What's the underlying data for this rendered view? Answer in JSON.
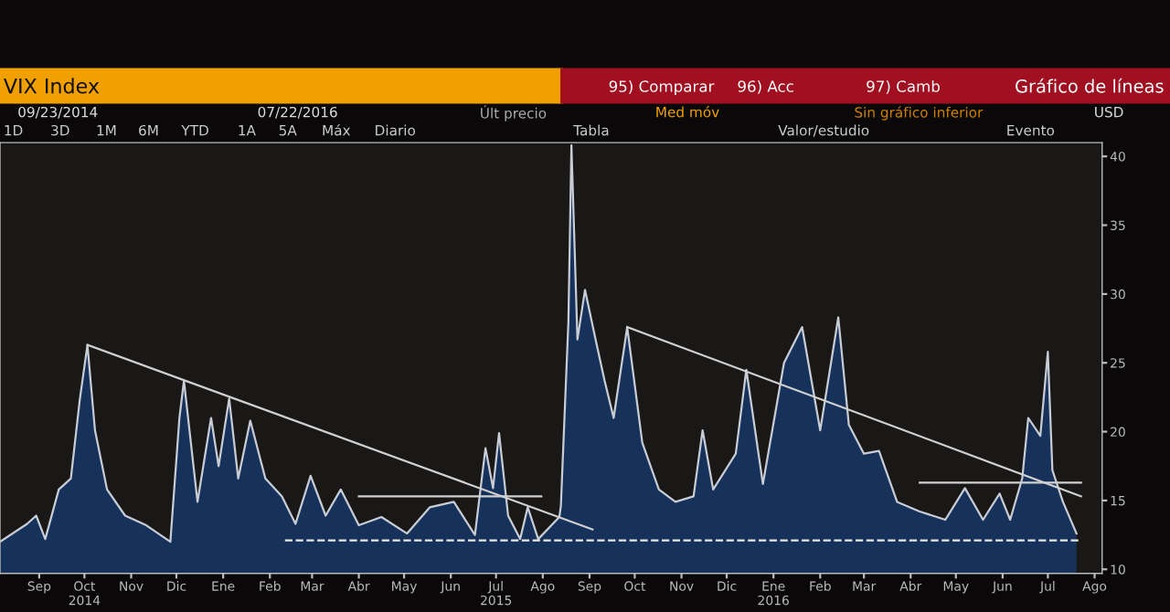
{
  "chart_data": {
    "type": "area",
    "title": "VIX Index",
    "subtitle": "Gráfico de líneas",
    "annotations": [
      "95) Comparar",
      "96) Acc",
      "97) Camb",
      "09/23/2014",
      "07/22/2016",
      "Últ precio",
      "Med móv",
      "Sin gráfico inferior",
      "USD",
      "1D",
      "3D",
      "1M",
      "6M",
      "YTD",
      "1A",
      "5A",
      "Máx",
      "Diario",
      "Tabla",
      "Valor/estudio",
      "Evento"
    ],
    "series": [
      {
        "color": "#c8ccd4",
        "x": [
          "2014-08-20",
          "2014-09-07",
          "2014-09-13",
          "2014-09-19",
          "2014-09-28",
          "2014-10-06",
          "2014-10-12",
          "2014-10-17",
          "2014-10-22",
          "2014-10-30",
          "2014-11-11",
          "2014-11-25",
          "2014-12-11",
          "2014-12-17",
          "2014-12-20",
          "2014-12-29",
          "2015-01-07",
          "2015-01-12",
          "2015-01-19",
          "2015-01-25",
          "2015-02-02",
          "2015-02-12",
          "2015-02-23",
          "2015-03-04",
          "2015-03-14",
          "2015-03-24",
          "2015-04-03",
          "2015-04-15",
          "2015-04-30",
          "2015-05-17",
          "2015-06-01",
          "2015-06-17",
          "2015-07-01",
          "2015-07-08",
          "2015-07-13",
          "2015-07-17",
          "2015-07-23",
          "2015-07-31",
          "2015-08-05",
          "2015-08-12",
          "2015-08-26",
          "2015-08-27",
          "2015-09-01",
          "2015-09-03",
          "2015-09-07",
          "2015-09-12",
          "2015-09-19",
          "2015-09-25",
          "2015-10-01",
          "2015-10-10",
          "2015-10-20",
          "2015-10-31",
          "2015-11-11",
          "2015-11-23",
          "2015-11-29",
          "2015-12-06",
          "2015-12-21",
          "2015-12-28",
          "2016-01-08",
          "2016-01-22",
          "2016-02-03",
          "2016-02-15",
          "2016-02-27",
          "2016-03-05",
          "2016-03-15",
          "2016-03-25",
          "2016-04-06",
          "2016-04-21",
          "2016-05-08",
          "2016-05-21",
          "2016-06-02",
          "2016-06-13",
          "2016-06-20",
          "2016-06-28",
          "2016-07-02",
          "2016-07-10",
          "2016-07-15",
          "2016-07-18",
          "2016-07-25",
          "2016-08-03"
        ],
        "values": [
          12.0,
          13.3,
          13.9,
          12.2,
          15.8,
          16.6,
          22.4,
          26.3,
          20.1,
          15.8,
          13.9,
          13.2,
          12.0,
          21.0,
          23.7,
          14.9,
          21.0,
          17.5,
          22.4,
          16.6,
          20.8,
          16.6,
          15.3,
          13.3,
          16.8,
          13.9,
          15.8,
          13.2,
          13.8,
          12.6,
          14.5,
          14.9,
          12.5,
          18.8,
          15.9,
          19.9,
          13.9,
          12.2,
          14.5,
          12.2,
          13.8,
          14.6,
          28.0,
          40.8,
          26.7,
          30.3,
          26.7,
          23.7,
          21.0,
          27.6,
          19.2,
          15.8,
          14.9,
          15.3,
          20.1,
          15.8,
          18.4,
          24.5,
          16.2,
          25.0,
          27.6,
          20.1,
          28.3,
          20.5,
          18.4,
          18.6,
          14.9,
          14.2,
          13.6,
          15.9,
          13.6,
          15.5,
          13.6,
          16.6,
          21.0,
          19.7,
          25.8,
          17.2,
          14.9,
          12.6
        ]
      },
      {
        "type": "line",
        "color": "#d0d0d0",
        "x": [
          "2014-10-17",
          "2015-09-17"
        ],
        "values": [
          26.3,
          12.9
        ]
      },
      {
        "type": "line",
        "color": "#d0d0d0",
        "x": [
          "2015-10-10",
          "2016-08-06"
        ],
        "values": [
          27.6,
          15.3
        ]
      },
      {
        "type": "line",
        "color": "#d0d0d0",
        "x": [
          "2015-04-15",
          "2015-08-14"
        ],
        "values": [
          15.3,
          15.3
        ]
      },
      {
        "type": "line",
        "color": "#d0d0d0",
        "x": [
          "2016-04-21",
          "2016-08-06"
        ],
        "values": [
          16.3,
          16.3
        ]
      },
      {
        "type": "line",
        "color": "#e8e8e8",
        "line_style": "dashed",
        "x": [
          "2015-02-25",
          "2016-08-06"
        ],
        "values": [
          12.1,
          12.1
        ]
      }
    ],
    "xlim": [
      "2014-08-20",
      "2016-08-20"
    ],
    "xticks": [
      {
        "value": "2014-09-15",
        "label": "Sep"
      },
      {
        "value": "2014-10-15",
        "label": "Oct\n2014"
      },
      {
        "value": "2014-11-15",
        "label": "Nov"
      },
      {
        "value": "2014-12-15",
        "label": "Dic"
      },
      {
        "value": "2015-01-15",
        "label": "Ene"
      },
      {
        "value": "2015-02-15",
        "label": "Feb"
      },
      {
        "value": "2015-03-15",
        "label": "Mar"
      },
      {
        "value": "2015-04-15",
        "label": "Abr"
      },
      {
        "value": "2015-05-15",
        "label": "May"
      },
      {
        "value": "2015-06-15",
        "label": "Jun"
      },
      {
        "value": "2015-07-15",
        "label": "Jul\n2015"
      },
      {
        "value": "2015-08-15",
        "label": "Ago"
      },
      {
        "value": "2015-09-15",
        "label": "Sep"
      },
      {
        "value": "2015-10-15",
        "label": "Oct"
      },
      {
        "value": "2015-11-15",
        "label": "Nov"
      },
      {
        "value": "2015-12-15",
        "label": "Dic"
      },
      {
        "value": "2016-01-15",
        "label": "Ene\n2016"
      },
      {
        "value": "2016-02-15",
        "label": "Feb"
      },
      {
        "value": "2016-03-15",
        "label": "Mar"
      },
      {
        "value": "2016-04-15",
        "label": "Abr"
      },
      {
        "value": "2016-05-15",
        "label": "May"
      },
      {
        "value": "2016-06-15",
        "label": "Jun"
      },
      {
        "value": "2016-07-15",
        "label": "Jul"
      },
      {
        "value": "2016-08-15",
        "label": "Ago"
      }
    ],
    "ylim": [
      9.7,
      41
    ],
    "yticks": [
      10,
      15,
      20,
      25,
      30,
      35,
      40
    ],
    "grid": false
  }
}
